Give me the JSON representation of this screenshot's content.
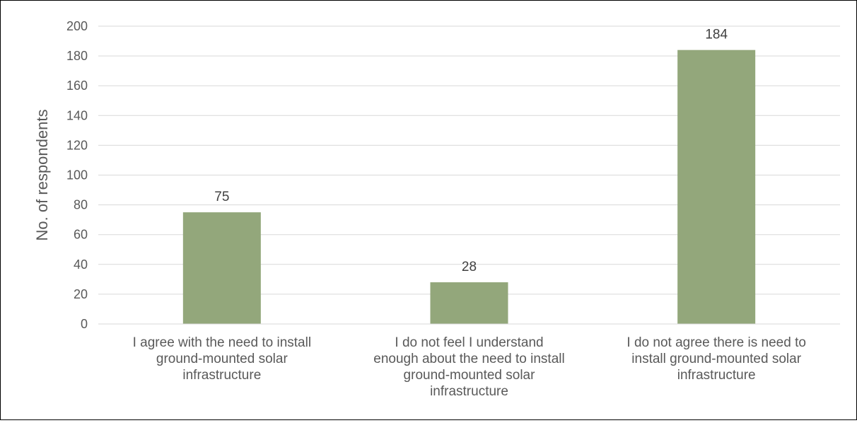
{
  "chart_data": {
    "type": "bar",
    "title": "",
    "xlabel": "",
    "ylabel": "No. of respondents",
    "ylim": [
      0,
      200
    ],
    "yticks": [
      0,
      20,
      40,
      60,
      80,
      100,
      120,
      140,
      160,
      180,
      200
    ],
    "grid": true,
    "legend": "none",
    "bar_color": "#93A77B",
    "categories": [
      [
        "I agree with the need to install",
        "ground-mounted solar",
        "infrastructure"
      ],
      [
        "I do not feel I understand",
        "enough about the need to install",
        "ground-mounted solar",
        "infrastructure"
      ],
      [
        "I do not agree there is need to",
        "install ground-mounted solar",
        "infrastructure"
      ]
    ],
    "values": [
      75,
      28,
      184
    ],
    "data_labels": [
      "75",
      "28",
      "184"
    ]
  }
}
